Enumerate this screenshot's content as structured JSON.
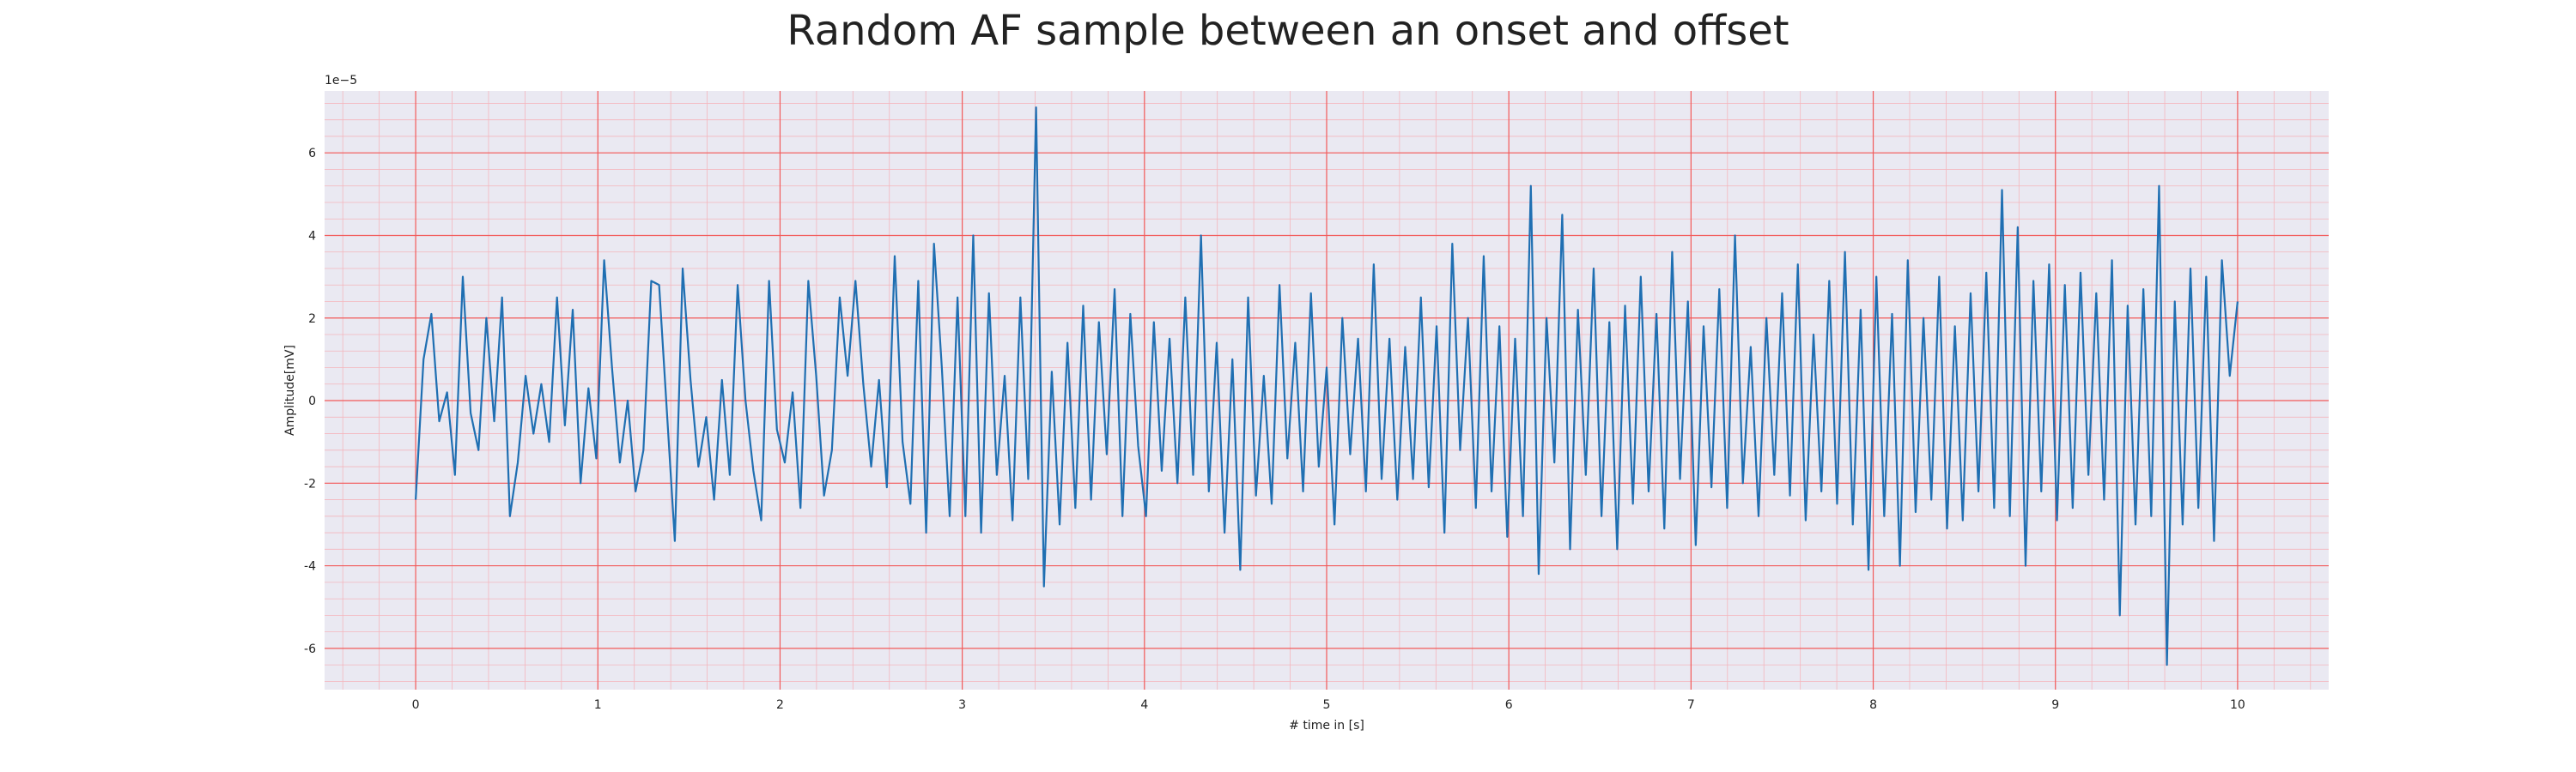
{
  "chart_data": {
    "type": "line",
    "title": "Random AF sample between an onset and offset",
    "xlabel": "# time in [s]",
    "ylabel": "Amplitude[mV]",
    "y_scale_label": "1e−5",
    "xlim": [
      -0.5,
      10.5
    ],
    "ylim": [
      -7.0,
      7.5
    ],
    "x_ticks": [
      0,
      1,
      2,
      3,
      4,
      5,
      6,
      7,
      8,
      9,
      10
    ],
    "y_ticks": [
      -6,
      -4,
      -2,
      0,
      2,
      4,
      6
    ],
    "y_tick_labels": [
      "-6",
      "-4",
      "-2",
      "0",
      "2",
      "4",
      "6"
    ],
    "grid": "major and minor",
    "colors": {
      "background": "#eae9f2",
      "major_grid": "#f25a5a",
      "minor_grid": "#f4b6bd",
      "line": "#1f6fb2"
    },
    "series": [
      {
        "values_y_1e-5": [
          -2.4,
          1.0,
          2.1,
          -0.5,
          0.2,
          -1.8,
          3.0,
          -0.3,
          -1.2,
          2.0,
          -0.5,
          2.5,
          -2.8,
          -1.5,
          0.6,
          -0.8,
          0.4,
          -1.0,
          2.5,
          -0.6,
          2.2,
          -2.0,
          0.3,
          -1.4,
          3.4,
          0.8,
          -1.5,
          0.0,
          -2.2,
          -1.2,
          2.9,
          2.8,
          -0.3,
          -3.4,
          3.2,
          0.5,
          -1.6,
          -0.4,
          -2.4,
          0.5,
          -1.8,
          2.8,
          0.0,
          -1.7,
          -2.9,
          2.9,
          -0.7,
          -1.5,
          0.2,
          -2.6,
          2.9,
          0.6,
          -2.3,
          -1.2,
          2.5,
          0.6,
          2.9,
          0.4,
          -1.6,
          0.5,
          -2.1,
          3.5,
          -1.0,
          -2.5,
          2.9,
          -3.2,
          3.8,
          0.8,
          -2.8,
          2.5,
          -2.8,
          4.0,
          -3.2,
          2.6,
          -1.8,
          0.6,
          -2.9,
          2.5,
          -1.9,
          7.1,
          -4.5,
          0.7,
          -3.0,
          1.4,
          -2.6,
          2.3,
          -2.4,
          1.9,
          -1.3,
          2.7,
          -2.8,
          2.1,
          -1.1,
          -2.8,
          1.9,
          -1.7,
          1.5,
          -2.0,
          2.5,
          -1.8,
          4.0,
          -2.2,
          1.4,
          -3.2,
          1.0,
          -4.1,
          2.5,
          -2.3,
          0.6,
          -2.5,
          2.8,
          -1.4,
          1.4,
          -2.2,
          2.6,
          -1.6,
          0.8,
          -3.0,
          2.0,
          -1.3,
          1.5,
          -2.2,
          3.3,
          -1.9,
          1.5,
          -2.4,
          1.3,
          -1.9,
          2.5,
          -2.1,
          1.8,
          -3.2,
          3.8,
          -1.2,
          2.0,
          -2.6,
          3.5,
          -2.2,
          1.8,
          -3.3,
          1.5,
          -2.8,
          5.2,
          -4.2,
          2.0,
          -1.5,
          4.5,
          -3.6,
          2.2,
          -1.8,
          3.2,
          -2.8,
          1.9,
          -3.6,
          2.3,
          -2.5,
          3.0,
          -2.2,
          2.1,
          -3.1,
          3.6,
          -1.9,
          2.4,
          -3.5,
          1.8,
          -2.1,
          2.7,
          -2.6,
          4.0,
          -2.0,
          1.3,
          -2.8,
          2.0,
          -1.8,
          2.6,
          -2.3,
          3.3,
          -2.9,
          1.6,
          -2.2,
          2.9,
          -2.5,
          3.6,
          -3.0,
          2.2,
          -4.1,
          3.0,
          -2.8,
          2.1,
          -4.0,
          3.4,
          -2.7,
          2.0,
          -2.4,
          3.0,
          -3.1,
          1.8,
          -2.9,
          2.6,
          -2.2,
          3.1,
          -2.6,
          5.1,
          -2.8,
          4.2,
          -4.0,
          2.9,
          -2.2,
          3.3,
          -2.9,
          2.8,
          -2.6,
          3.1,
          -1.8,
          2.6,
          -2.4,
          3.4,
          -5.2,
          2.3,
          -3.0,
          2.7,
          -2.8,
          5.2,
          -6.4,
          2.4,
          -3.0,
          3.2,
          -2.6,
          3.0,
          -3.4,
          3.4,
          0.6,
          2.4
        ]
      }
    ]
  }
}
